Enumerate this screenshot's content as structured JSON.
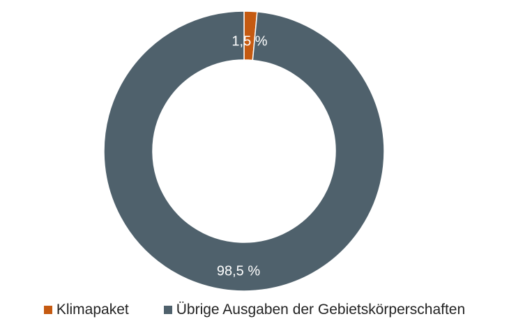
{
  "chart_data": {
    "type": "pie",
    "donut": true,
    "title": "",
    "categories": [
      "Klimapaket",
      "Übrige Ausgaben der Gebietskörperschaften"
    ],
    "values": [
      1.5,
      98.5
    ],
    "unit": "%",
    "data_labels": [
      "1,5 %",
      "98,5 %"
    ],
    "colors": [
      "#c55a11",
      "#4f616c"
    ],
    "legend": "bottom",
    "start_angle": "top, clockwise"
  }
}
